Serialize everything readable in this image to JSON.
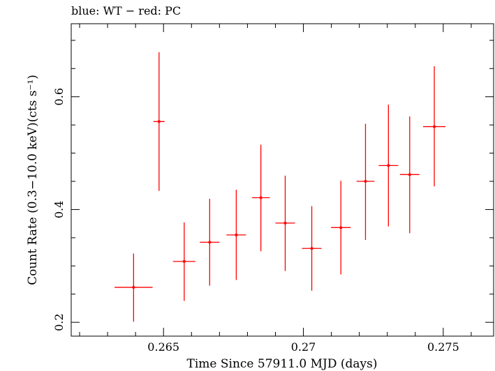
{
  "chart_data": {
    "type": "scatter",
    "title": "blue: WT − red: PC",
    "xlabel": "Time Since 57911.0 MJD (days)",
    "ylabel": "Count Rate (0.3−10.0 keV)(cts s⁻¹)",
    "xlim": [
      0.2617,
      0.2768
    ],
    "ylim": [
      0.1755,
      0.7295
    ],
    "xticks": [
      0.265,
      0.27,
      0.275
    ],
    "xtick_labels": [
      "0.265",
      "0.27",
      "0.275"
    ],
    "yticks": [
      0.2,
      0.4,
      0.6
    ],
    "ytick_labels": [
      "0.2",
      "0.4",
      "0.6"
    ],
    "series": [
      {
        "name": "PC",
        "color": "#ff0000",
        "points": [
          {
            "x": 0.26393,
            "xerr": 0.00068,
            "y": 0.262,
            "ylo": 0.201,
            "yhi": 0.322
          },
          {
            "x": 0.26484,
            "xerr": 0.0002,
            "y": 0.556,
            "ylo": 0.433,
            "yhi": 0.679
          },
          {
            "x": 0.26574,
            "xerr": 0.0004,
            "y": 0.308,
            "ylo": 0.238,
            "yhi": 0.377
          },
          {
            "x": 0.26665,
            "xerr": 0.00035,
            "y": 0.342,
            "ylo": 0.265,
            "yhi": 0.419
          },
          {
            "x": 0.2676,
            "xerr": 0.00035,
            "y": 0.355,
            "ylo": 0.275,
            "yhi": 0.435
          },
          {
            "x": 0.26848,
            "xerr": 0.00032,
            "y": 0.421,
            "ylo": 0.326,
            "yhi": 0.515
          },
          {
            "x": 0.26935,
            "xerr": 0.00035,
            "y": 0.376,
            "ylo": 0.291,
            "yhi": 0.46
          },
          {
            "x": 0.2703,
            "xerr": 0.00035,
            "y": 0.331,
            "ylo": 0.256,
            "yhi": 0.406
          },
          {
            "x": 0.27134,
            "xerr": 0.00035,
            "y": 0.368,
            "ylo": 0.285,
            "yhi": 0.451
          },
          {
            "x": 0.27222,
            "xerr": 0.00032,
            "y": 0.45,
            "ylo": 0.346,
            "yhi": 0.552
          },
          {
            "x": 0.27304,
            "xerr": 0.00035,
            "y": 0.478,
            "ylo": 0.37,
            "yhi": 0.586
          },
          {
            "x": 0.2738,
            "xerr": 0.00035,
            "y": 0.462,
            "ylo": 0.358,
            "yhi": 0.565
          },
          {
            "x": 0.27468,
            "xerr": 0.0004,
            "y": 0.547,
            "ylo": 0.441,
            "yhi": 0.654
          }
        ]
      }
    ]
  }
}
